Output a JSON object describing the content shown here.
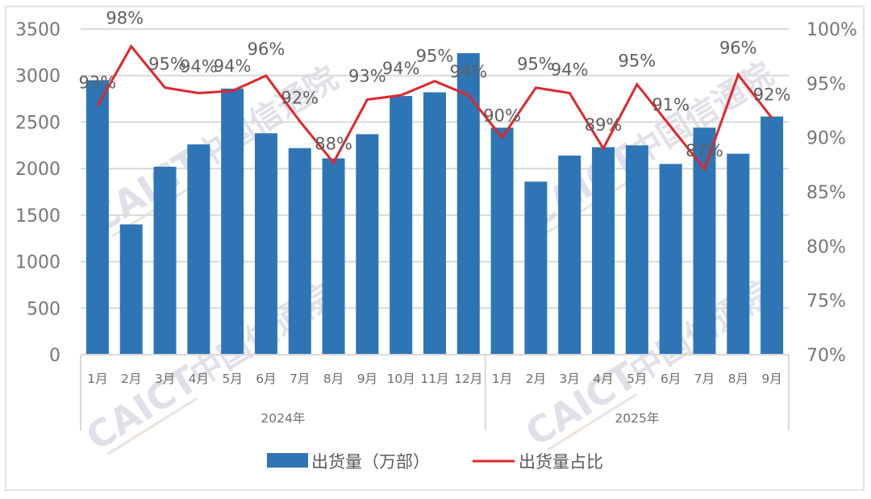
{
  "chart_data": {
    "type": "bar+line",
    "title": "",
    "categories": [
      "1月",
      "2月",
      "3月",
      "4月",
      "5月",
      "6月",
      "7月",
      "8月",
      "9月",
      "10月",
      "11月",
      "12月",
      "1月",
      "2月",
      "3月",
      "4月",
      "5月",
      "6月",
      "7月",
      "8月",
      "9月"
    ],
    "groups": [
      {
        "label": "2024年",
        "start": 0,
        "end": 11
      },
      {
        "label": "2025年",
        "start": 12,
        "end": 20
      }
    ],
    "series": [
      {
        "name": "出货量（万部）",
        "type": "bar",
        "axis": "left",
        "color": "#2e75b6",
        "values": [
          2950,
          1400,
          2020,
          2260,
          2860,
          2380,
          2220,
          2110,
          2370,
          2780,
          2820,
          3240,
          2440,
          1860,
          2140,
          2230,
          2250,
          2050,
          2440,
          2160,
          2560
        ]
      },
      {
        "name": "出货量占比",
        "type": "line",
        "axis": "right",
        "color": "#e0262b",
        "values": [
          92.9,
          98.4,
          94.6,
          94.1,
          94.3,
          95.7,
          91.5,
          87.7,
          93.5,
          93.9,
          95.2,
          93.9,
          90.0,
          94.6,
          94.1,
          89.0,
          94.9,
          91.0,
          87.1,
          95.8,
          91.8
        ],
        "labels": [
          "93%",
          "98%",
          "95%",
          "94%",
          "94%",
          "96%",
          "92%",
          "88%",
          "93%",
          "94%",
          "95%",
          "94%",
          "90%",
          "95%",
          "94%",
          "89%",
          "95%",
          "91%",
          "87%",
          "96%",
          "92%"
        ]
      }
    ],
    "left_axis": {
      "min": 0,
      "max": 3500,
      "step": 500,
      "ticks": [
        "0",
        "500",
        "1000",
        "1500",
        "2000",
        "2500",
        "3000",
        "3500"
      ]
    },
    "right_axis": {
      "min": 70,
      "max": 100,
      "step": 5,
      "ticks": [
        "70%",
        "75%",
        "80%",
        "85%",
        "90%",
        "95%",
        "100%"
      ]
    },
    "xlabel": "",
    "ylabel": "",
    "grid": true,
    "legend_position": "bottom"
  },
  "legend": {
    "bar_label": "出货量（万部）",
    "line_label": "出货量占比"
  },
  "watermark": {
    "latin": "CAICT",
    "cjk": "中国信通院"
  }
}
